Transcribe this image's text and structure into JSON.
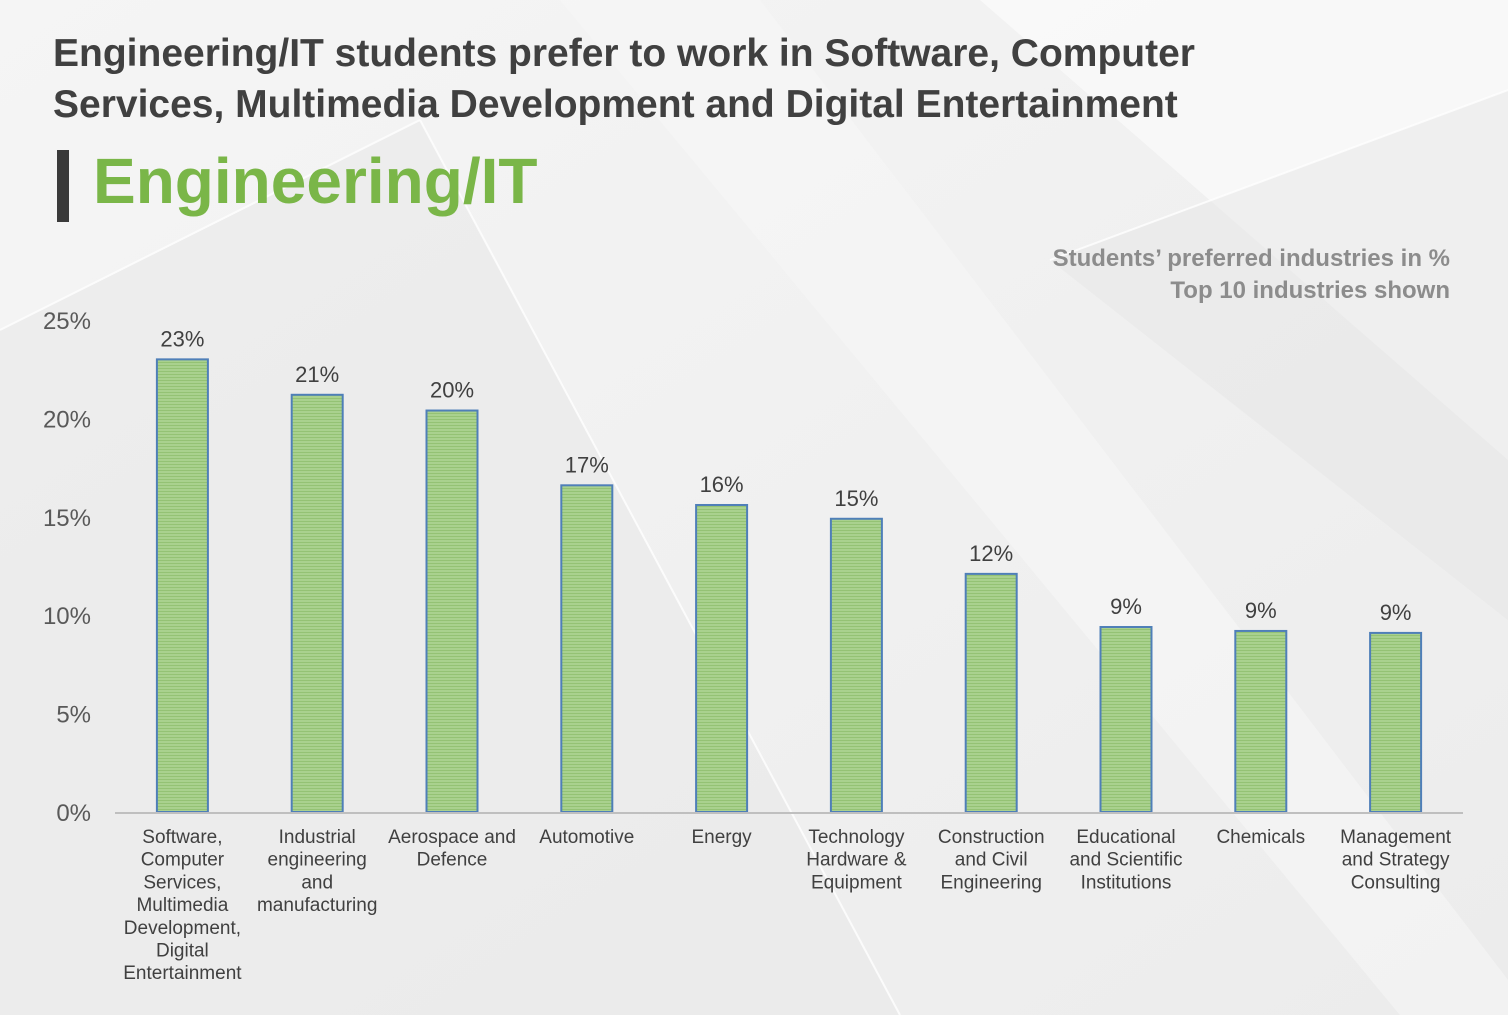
{
  "title_line1": "Engineering/IT students prefer to work in Software, Computer",
  "title_line2": "Services, Multimedia Development and Digital Entertainment",
  "section_heading": "Engineering/IT",
  "subtitle_line1": "Students’ preferred industries in %",
  "subtitle_line2": "Top 10 industries shown",
  "colors": {
    "bar_fill": "#a9d18e",
    "bar_stroke": "#4f7fb8",
    "accent": "#7ab648",
    "title": "#404040",
    "subtitle": "#8c8c8c"
  },
  "chart_data": {
    "type": "bar",
    "title": "",
    "xlabel": "",
    "ylabel": "",
    "ylim": [
      0,
      25
    ],
    "yticks": [
      0,
      5,
      10,
      15,
      20,
      25
    ],
    "ytick_labels": [
      "0%",
      "5%",
      "10%",
      "15%",
      "20%",
      "25%"
    ],
    "grid": false,
    "categories": [
      [
        "Software,",
        "Computer",
        "Services,",
        "Multimedia",
        "Development,",
        "Digital",
        "Entertainment"
      ],
      [
        "Industrial",
        "engineering",
        "and",
        "manufacturing"
      ],
      [
        "Aerospace and",
        "Defence"
      ],
      [
        "Automotive"
      ],
      [
        "Energy"
      ],
      [
        "Technology",
        "Hardware &",
        "Equipment"
      ],
      [
        "Construction",
        "and Civil",
        "Engineering"
      ],
      [
        "Educational",
        "and Scientific",
        "Institutions"
      ],
      [
        "Chemicals"
      ],
      [
        "Management",
        "and Strategy",
        "Consulting"
      ]
    ],
    "values": [
      23.0,
      21.2,
      20.4,
      16.6,
      15.6,
      14.9,
      12.1,
      9.4,
      9.2,
      9.1
    ],
    "data_labels": [
      "23%",
      "21%",
      "20%",
      "17%",
      "16%",
      "15%",
      "12%",
      "9%",
      "9%",
      "9%"
    ]
  }
}
